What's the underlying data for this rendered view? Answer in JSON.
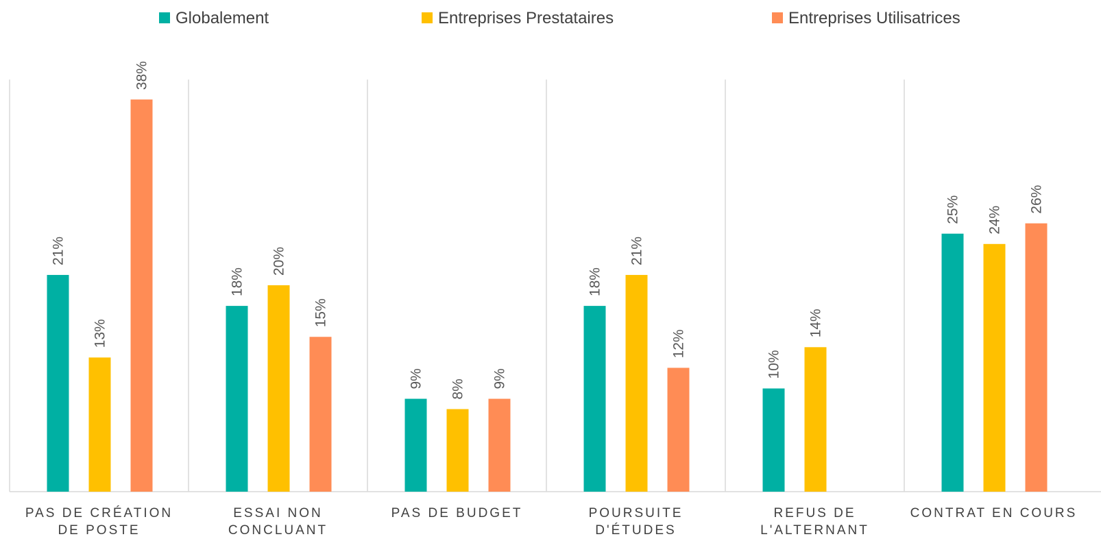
{
  "chart_data": {
    "type": "bar",
    "categories": [
      [
        "PAS DE CRÉATION",
        "DE POSTE"
      ],
      [
        "ESSAI NON",
        "CONCLUANT"
      ],
      [
        "PAS DE BUDGET"
      ],
      [
        "POURSUITE",
        "D'ÉTUDES"
      ],
      [
        "REFUS DE",
        "L'ALTERNANT"
      ],
      [
        "CONTRAT EN COURS"
      ]
    ],
    "series": [
      {
        "name": "Globalement",
        "color": "#00B0A3",
        "values": [
          21,
          18,
          9,
          18,
          10,
          25
        ],
        "labels": [
          "21%",
          "18%",
          "9%",
          "18%",
          "10%",
          "25%"
        ]
      },
      {
        "name": "Entreprises Prestataires",
        "color": "#FFC000",
        "values": [
          13,
          20,
          8,
          21,
          14,
          24
        ],
        "labels": [
          "13%",
          "20%",
          "8%",
          "21%",
          "14%",
          "24%"
        ]
      },
      {
        "name": "Entreprises Utilisatrices",
        "color": "#FF8C55",
        "values": [
          38,
          15,
          9,
          12,
          null,
          26
        ],
        "labels": [
          "38%",
          "15%",
          "9%",
          "12%",
          "",
          "26%"
        ]
      }
    ],
    "ylim": [
      0,
      40
    ],
    "legend": "top",
    "grid": false,
    "category_separators": true
  }
}
